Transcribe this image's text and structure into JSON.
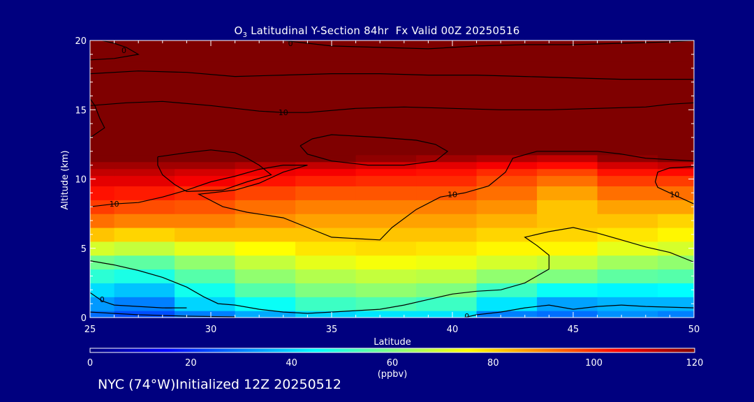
{
  "chart_data": {
    "type": "heatmap",
    "title": {
      "species": "O",
      "species_sub": "3",
      "rest": " Latitudinal Y-Section 84hr  Fx Valid 00Z 20250516"
    },
    "xlabel": "Latitude",
    "ylabel": "Altitude (km)",
    "xlim": [
      25,
      50
    ],
    "ylim": [
      0,
      20
    ],
    "xticks": [
      "25",
      "30",
      "35",
      "40",
      "45",
      "50"
    ],
    "yticks": [
      "0",
      "5",
      "10",
      "15",
      "20"
    ],
    "colorbar": {
      "label": "(ppbv)",
      "ticks": [
        "0",
        "20",
        "40",
        "60",
        "80",
        "100",
        "120"
      ],
      "range": [
        0,
        120
      ],
      "colors": [
        "#00007f",
        "#0000ff",
        "#0080ff",
        "#00ffff",
        "#80ff80",
        "#ffff00",
        "#ff8000",
        "#ff0000",
        "#7f0000"
      ]
    },
    "field": {
      "lat": [
        25,
        27,
        30,
        32,
        35,
        37,
        40,
        42,
        45,
        47,
        50
      ],
      "alt": [
        0,
        1,
        2,
        3,
        4,
        5,
        6,
        7,
        8,
        9,
        10,
        10.5,
        11,
        11.5,
        12,
        13,
        14,
        15,
        16,
        17,
        18,
        19,
        20
      ],
      "values": [
        [
          28,
          24,
          30,
          35,
          40,
          42,
          42,
          30,
          28,
          32,
          30
        ],
        [
          33,
          30,
          40,
          46,
          52,
          54,
          52,
          42,
          34,
          36,
          36
        ],
        [
          41,
          38,
          47,
          55,
          60,
          62,
          60,
          52,
          46,
          44,
          45
        ],
        [
          50,
          48,
          55,
          62,
          66,
          68,
          67,
          62,
          60,
          56,
          55
        ],
        [
          58,
          56,
          62,
          68,
          72,
          74,
          73,
          70,
          68,
          64,
          62
        ],
        [
          70,
          68,
          72,
          75,
          78,
          79,
          78,
          76,
          76,
          72,
          70
        ],
        [
          82,
          80,
          82,
          82,
          82,
          82,
          82,
          80,
          80,
          78,
          76
        ],
        [
          92,
          90,
          90,
          88,
          86,
          86,
          86,
          84,
          82,
          82,
          80
        ],
        [
          98,
          96,
          95,
          92,
          90,
          90,
          90,
          88,
          82,
          86,
          86
        ],
        [
          103,
          102,
          100,
          97,
          95,
          95,
          95,
          92,
          86,
          92,
          92
        ],
        [
          108,
          108,
          106,
          103,
          101,
          100,
          100,
          96,
          92,
          98,
          98
        ],
        [
          112,
          112,
          110,
          107,
          106,
          104,
          103,
          100,
          97,
          103,
          104
        ],
        [
          116,
          116,
          116,
          114,
          112,
          110,
          108,
          106,
          104,
          110,
          112
        ],
        [
          120,
          120,
          120,
          120,
          120,
          118,
          116,
          114,
          112,
          118,
          120
        ],
        [
          120,
          120,
          120,
          120,
          120,
          120,
          120,
          120,
          120,
          120,
          120
        ],
        [
          120,
          120,
          120,
          120,
          120,
          120,
          120,
          120,
          120,
          120,
          120
        ],
        [
          120,
          120,
          120,
          120,
          120,
          120,
          120,
          120,
          120,
          120,
          120
        ],
        [
          120,
          120,
          120,
          120,
          120,
          120,
          120,
          120,
          120,
          120,
          120
        ],
        [
          120,
          120,
          120,
          120,
          120,
          120,
          120,
          120,
          120,
          120,
          120
        ],
        [
          120,
          120,
          120,
          120,
          120,
          120,
          120,
          120,
          120,
          120,
          120
        ],
        [
          120,
          120,
          120,
          120,
          120,
          120,
          120,
          120,
          120,
          120,
          120
        ],
        [
          120,
          120,
          120,
          120,
          120,
          120,
          120,
          120,
          120,
          120,
          120
        ],
        [
          120,
          120,
          120,
          120,
          120,
          120,
          120,
          120,
          120,
          120,
          120
        ]
      ]
    },
    "contour_lines": [
      {
        "points": [
          [
            25,
            8.0
          ],
          [
            26,
            8.2
          ],
          [
            27,
            8.3
          ],
          [
            28,
            8.7
          ],
          [
            29,
            9.2
          ],
          [
            30,
            9.8
          ],
          [
            31,
            10.2
          ],
          [
            32,
            10.7
          ],
          [
            33,
            11.0
          ],
          [
            34,
            11.0
          ]
        ],
        "label": "10",
        "label_at": [
          26,
          8.2
        ]
      },
      {
        "points": [
          [
            27.8,
            11.6
          ],
          [
            29,
            11.9
          ],
          [
            30,
            12.1
          ],
          [
            31,
            11.9
          ],
          [
            31.5,
            11.5
          ],
          [
            32,
            11.0
          ],
          [
            32.5,
            10.3
          ],
          [
            31.5,
            9.8
          ],
          [
            30.5,
            9.2
          ],
          [
            29,
            9.1
          ],
          [
            28.5,
            9.6
          ],
          [
            28,
            10.3
          ],
          [
            27.8,
            11.0
          ],
          [
            27.8,
            11.6
          ]
        ],
        "label": "",
        "label_at": null
      },
      {
        "points": [
          [
            34,
            11.0
          ],
          [
            33,
            10.5
          ],
          [
            32,
            9.7
          ],
          [
            31,
            9.2
          ],
          [
            30,
            9.0
          ],
          [
            29.5,
            8.9
          ],
          [
            30.5,
            8.0
          ],
          [
            31.5,
            7.6
          ],
          [
            33,
            7.2
          ],
          [
            34,
            6.5
          ],
          [
            35,
            5.8
          ],
          [
            37,
            5.6
          ],
          [
            37.5,
            6.5
          ],
          [
            38.5,
            7.8
          ],
          [
            39.5,
            8.7
          ],
          [
            40.5,
            9.0
          ],
          [
            41.5,
            9.5
          ],
          [
            42.2,
            10.5
          ],
          [
            42.5,
            11.5
          ],
          [
            43.5,
            12.0
          ],
          [
            45,
            12.0
          ],
          [
            46,
            12.0
          ],
          [
            47,
            11.8
          ],
          [
            48,
            11.5
          ],
          [
            50,
            11.3
          ]
        ],
        "label": "10",
        "label_at": [
          40,
          8.9
        ]
      },
      {
        "points": [
          [
            33.7,
            12.4
          ],
          [
            34.2,
            12.9
          ],
          [
            35,
            13.2
          ],
          [
            37,
            13.0
          ],
          [
            38.5,
            12.8
          ],
          [
            39.3,
            12.5
          ],
          [
            39.8,
            12.0
          ],
          [
            39.3,
            11.3
          ],
          [
            38,
            11.0
          ],
          [
            36.5,
            11.0
          ],
          [
            35,
            11.3
          ],
          [
            34,
            11.8
          ],
          [
            33.7,
            12.4
          ]
        ],
        "label": "",
        "label_at": null
      },
      {
        "points": [
          [
            50,
            8.2
          ],
          [
            49.5,
            8.6
          ],
          [
            49,
            9.0
          ],
          [
            48.5,
            9.4
          ],
          [
            48.4,
            9.8
          ],
          [
            48.5,
            10.5
          ],
          [
            49,
            10.8
          ],
          [
            50,
            10.9
          ]
        ],
        "label": "10",
        "label_at": [
          49.2,
          8.9
        ]
      },
      {
        "points": [
          [
            25,
            15.3
          ],
          [
            26.5,
            15.5
          ],
          [
            28,
            15.6
          ],
          [
            30,
            15.3
          ],
          [
            32,
            14.9
          ],
          [
            33,
            14.8
          ],
          [
            34,
            14.8
          ],
          [
            36,
            15.1
          ],
          [
            38,
            15.2
          ],
          [
            40,
            15.1
          ],
          [
            42,
            15.0
          ],
          [
            44,
            15.0
          ],
          [
            46,
            15.1
          ],
          [
            48,
            15.2
          ],
          [
            49,
            15.4
          ],
          [
            50,
            15.5
          ]
        ],
        "label": "10",
        "label_at": [
          33,
          14.8
        ]
      },
      {
        "points": [
          [
            25,
            17.6
          ],
          [
            27,
            17.8
          ],
          [
            29,
            17.7
          ],
          [
            31,
            17.4
          ],
          [
            33,
            17.5
          ],
          [
            35,
            17.6
          ],
          [
            37,
            17.6
          ],
          [
            39,
            17.5
          ],
          [
            41,
            17.5
          ],
          [
            43,
            17.4
          ],
          [
            45,
            17.3
          ],
          [
            47,
            17.2
          ],
          [
            49,
            17.2
          ],
          [
            50,
            17.2
          ]
        ],
        "label": "",
        "label_at": null
      },
      {
        "points": [
          [
            25,
            18.6
          ],
          [
            26,
            18.7
          ],
          [
            27,
            19.0
          ],
          [
            26.5,
            19.5
          ],
          [
            26,
            19.8
          ],
          [
            25.5,
            20.0
          ]
        ],
        "label": "0",
        "label_at": [
          26.4,
          19.3
        ]
      },
      {
        "points": [
          [
            33,
            20.0
          ],
          [
            35,
            19.6
          ],
          [
            37,
            19.5
          ],
          [
            39,
            19.4
          ],
          [
            41,
            19.6
          ],
          [
            43,
            19.7
          ],
          [
            45,
            19.7
          ],
          [
            47,
            19.8
          ],
          [
            49,
            19.9
          ],
          [
            50,
            20.0
          ]
        ],
        "label": "0",
        "label_at": [
          33.3,
          19.8
        ]
      },
      {
        "points": [
          [
            25,
            15.8
          ],
          [
            25.2,
            15.3
          ],
          [
            25.4,
            14.4
          ],
          [
            25.6,
            13.7
          ],
          [
            25.1,
            13.1
          ],
          [
            25,
            13.0
          ]
        ],
        "label": "",
        "label_at": null
      },
      {
        "points": [
          [
            25,
            4.1
          ],
          [
            26,
            3.8
          ],
          [
            27,
            3.4
          ],
          [
            28,
            2.9
          ],
          [
            29,
            2.2
          ],
          [
            29.7,
            1.5
          ],
          [
            30.3,
            1.0
          ],
          [
            31,
            0.9
          ],
          [
            32,
            0.6
          ],
          [
            33,
            0.4
          ],
          [
            34,
            0.3
          ],
          [
            35,
            0.4
          ],
          [
            36,
            0.5
          ],
          [
            37,
            0.6
          ],
          [
            38,
            0.9
          ],
          [
            39,
            1.3
          ],
          [
            40,
            1.7
          ],
          [
            41,
            1.9
          ],
          [
            42,
            2.0
          ],
          [
            43,
            2.5
          ],
          [
            44,
            3.5
          ],
          [
            44,
            4.5
          ],
          [
            43.5,
            5.2
          ],
          [
            43,
            5.8
          ],
          [
            44,
            6.2
          ],
          [
            45,
            6.5
          ],
          [
            46,
            6.1
          ],
          [
            47,
            5.6
          ],
          [
            48,
            5.1
          ],
          [
            49,
            4.7
          ],
          [
            50,
            4.0
          ]
        ],
        "label": "",
        "label_at": null
      },
      {
        "points": [
          [
            25,
            1.8
          ],
          [
            25.5,
            1.2
          ],
          [
            26,
            0.9
          ],
          [
            27,
            0.8
          ],
          [
            28,
            0.7
          ],
          [
            29,
            0.7
          ]
        ],
        "label": "0",
        "label_at": [
          25.5,
          1.3
        ]
      },
      {
        "points": [
          [
            25,
            0.4
          ],
          [
            27,
            0.2
          ],
          [
            29,
            0.1
          ],
          [
            31,
            0.05
          ]
        ],
        "label": "",
        "label_at": null
      },
      {
        "points": [
          [
            40.5,
            0.0
          ],
          [
            41,
            0.2
          ],
          [
            42,
            0.4
          ],
          [
            43,
            0.7
          ],
          [
            44,
            0.9
          ],
          [
            45,
            0.6
          ],
          [
            46,
            0.8
          ],
          [
            47,
            0.9
          ],
          [
            48,
            0.8
          ],
          [
            50,
            0.7
          ]
        ],
        "label": "0",
        "label_at": [
          40.6,
          0.1
        ]
      },
      {
        "points": [
          [
            28.1,
            0.7
          ],
          [
            28.4,
            0.7
          ]
        ],
        "label": "",
        "label_at": null
      }
    ]
  },
  "footer": "NYC (74°W)Initialized 12Z 20250512"
}
